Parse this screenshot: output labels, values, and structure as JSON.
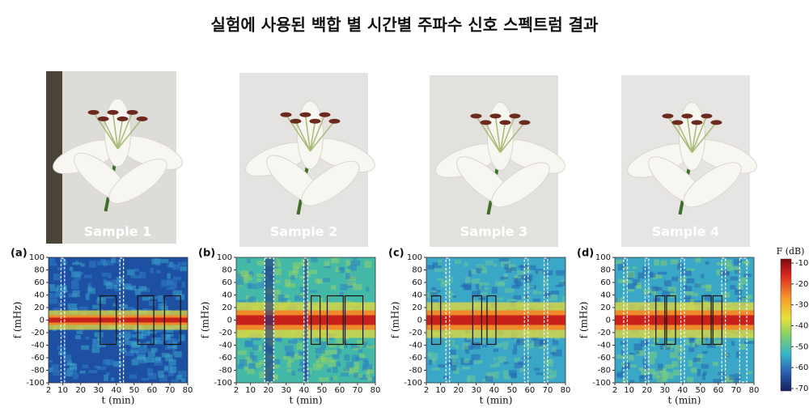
{
  "title": "실험에 사용된 백합 별 시간별 주파수 신호 스펙트럼 결과",
  "samples": [
    "Sample 1",
    "Sample 2",
    "Sample 3",
    "Sample 4"
  ],
  "panels": [
    "(a)",
    "(b)",
    "(c)",
    "(d)"
  ],
  "axes": {
    "xlabel": "t (min)",
    "ylabel": "f (mHz)",
    "xticks": [
      2,
      10,
      20,
      30,
      40,
      50,
      60,
      70,
      80
    ],
    "yticks": [
      100,
      80,
      60,
      40,
      20,
      0,
      -20,
      -40,
      -60,
      -80,
      -100
    ]
  },
  "colorbar": {
    "label": "F (dB)",
    "ticks": [
      -10,
      -20,
      -30,
      -40,
      -50,
      -60,
      -70
    ]
  }
}
